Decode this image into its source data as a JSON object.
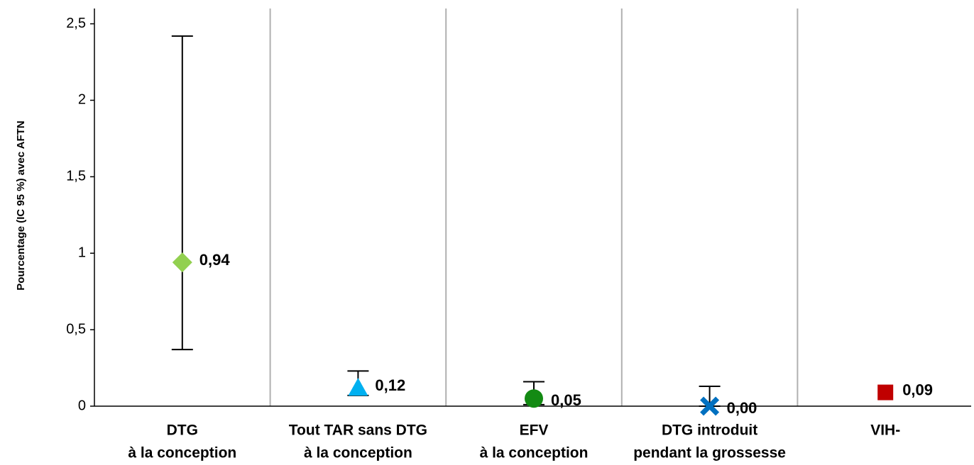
{
  "chart_data": {
    "type": "errorbar",
    "y_label": "Pourcentage (IC 95 %) avec AFTN",
    "categories": [
      [
        "DTG",
        "à la conception"
      ],
      [
        "Tout TAR sans DTG",
        "à la conception"
      ],
      [
        "EFV",
        "à la conception"
      ],
      [
        "DTG introduit",
        "pendant la grossesse"
      ],
      [
        "VIH-"
      ]
    ],
    "values": [
      0.94,
      0.12,
      0.05,
      0.0,
      0.09
    ],
    "value_labels": [
      "0,94",
      "0,12",
      "0,05",
      "0,00",
      "0,09"
    ],
    "ci_low": [
      0.37,
      0.07,
      0.01,
      0.0,
      null
    ],
    "ci_high": [
      2.42,
      0.23,
      0.16,
      0.13,
      null
    ],
    "colors": [
      "#92d050",
      "#00b0f0",
      "#138a13",
      "#0070c0",
      "#c00000"
    ],
    "markers": [
      "diamond",
      "triangle",
      "circle",
      "x",
      "square"
    ],
    "ylim": [
      0,
      2.6
    ],
    "yticks": [
      0,
      {
        "value": 0.5,
        "label": "0,5"
      },
      1,
      {
        "value": 1.5,
        "label": "1,5"
      },
      2,
      {
        "value": 2.5,
        "label": "2,5"
      }
    ]
  }
}
